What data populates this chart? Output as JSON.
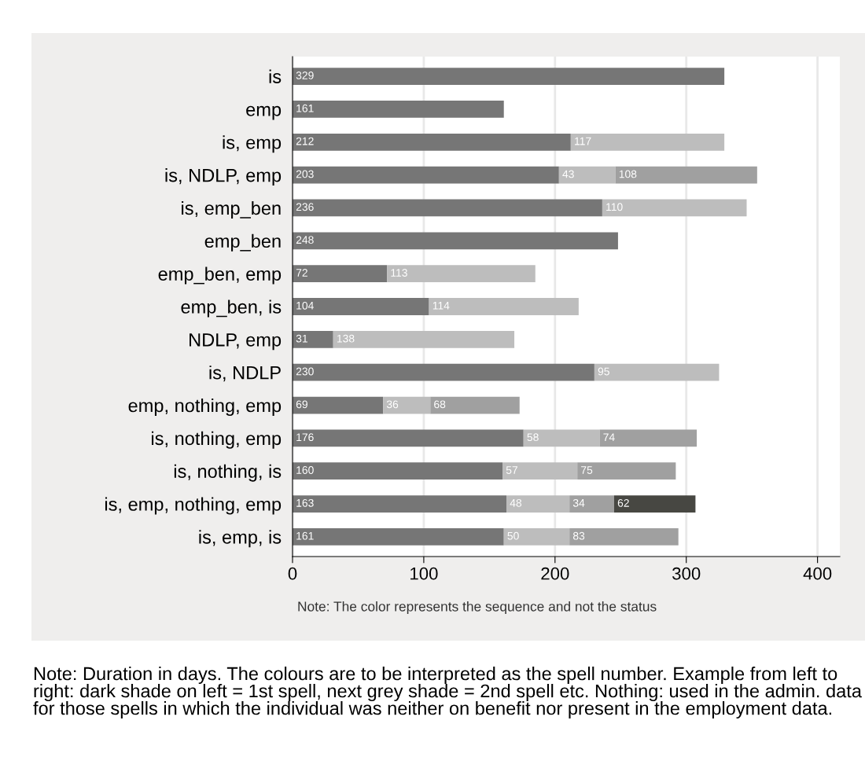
{
  "chart_data": {
    "type": "bar",
    "orientation": "horizontal",
    "stacked": true,
    "data_labels": true,
    "grid": "x",
    "legend": false,
    "categories": [
      "is",
      "emp",
      "is, emp",
      "is, NDLP, emp",
      "is, emp_ben",
      "emp_ben",
      "emp_ben, emp",
      "emp_ben, is",
      "NDLP, emp",
      "is, NDLP",
      "emp, nothing, emp",
      "is, nothing, emp",
      "is, nothing, is",
      "is, emp, nothing, emp",
      "is, emp, is"
    ],
    "series": [
      {
        "color": "#767676",
        "values": [
          329,
          161,
          212,
          203,
          236,
          248,
          72,
          104,
          31,
          230,
          69,
          176,
          160,
          163,
          161
        ]
      },
      {
        "color": "#bdbdbd",
        "values": [
          null,
          null,
          117,
          43,
          110,
          null,
          113,
          114,
          138,
          95,
          36,
          58,
          57,
          48,
          50
        ]
      },
      {
        "color": "#a0a0a0",
        "values": [
          null,
          null,
          null,
          108,
          null,
          null,
          null,
          null,
          null,
          null,
          68,
          74,
          75,
          34,
          83
        ]
      },
      {
        "color": "#474742",
        "values": [
          null,
          null,
          null,
          null,
          null,
          null,
          null,
          null,
          null,
          null,
          null,
          null,
          null,
          62,
          null
        ]
      }
    ],
    "xlim": [
      0,
      417
    ],
    "xticks": [
      0,
      100,
      200,
      300,
      400
    ],
    "annotations": [
      "Note: The color represents the sequence and not the status",
      "Note: Duration in days. The colours are to be interpreted as the spell number. Example from left to right: dark shade on left = 1st spell, next grey shade = 2nd spell etc. Nothing: used in the admin. data for those spells in which the individual was neither on benefit nor present in the employment data."
    ]
  }
}
